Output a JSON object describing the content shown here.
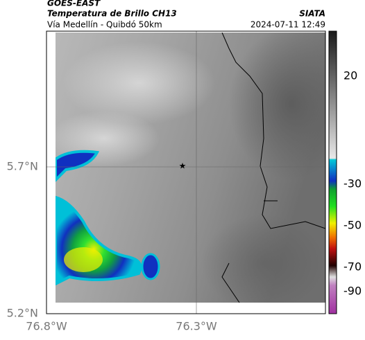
{
  "header": {
    "source": "GOES-EAST",
    "title": "Temperatura de Brillo CH13",
    "route": "Vía Medellín - Quibdó 50km",
    "org": "SIATA",
    "datetime": "2024-07-11 12:49"
  },
  "map": {
    "lat_ticks": [
      "5.7°N",
      "5.2°N"
    ],
    "lon_ticks": [
      "76.8°W",
      "76.3°W"
    ]
  },
  "colorbar": {
    "ticks": [
      20,
      -30,
      -50,
      -70,
      -90
    ]
  }
}
